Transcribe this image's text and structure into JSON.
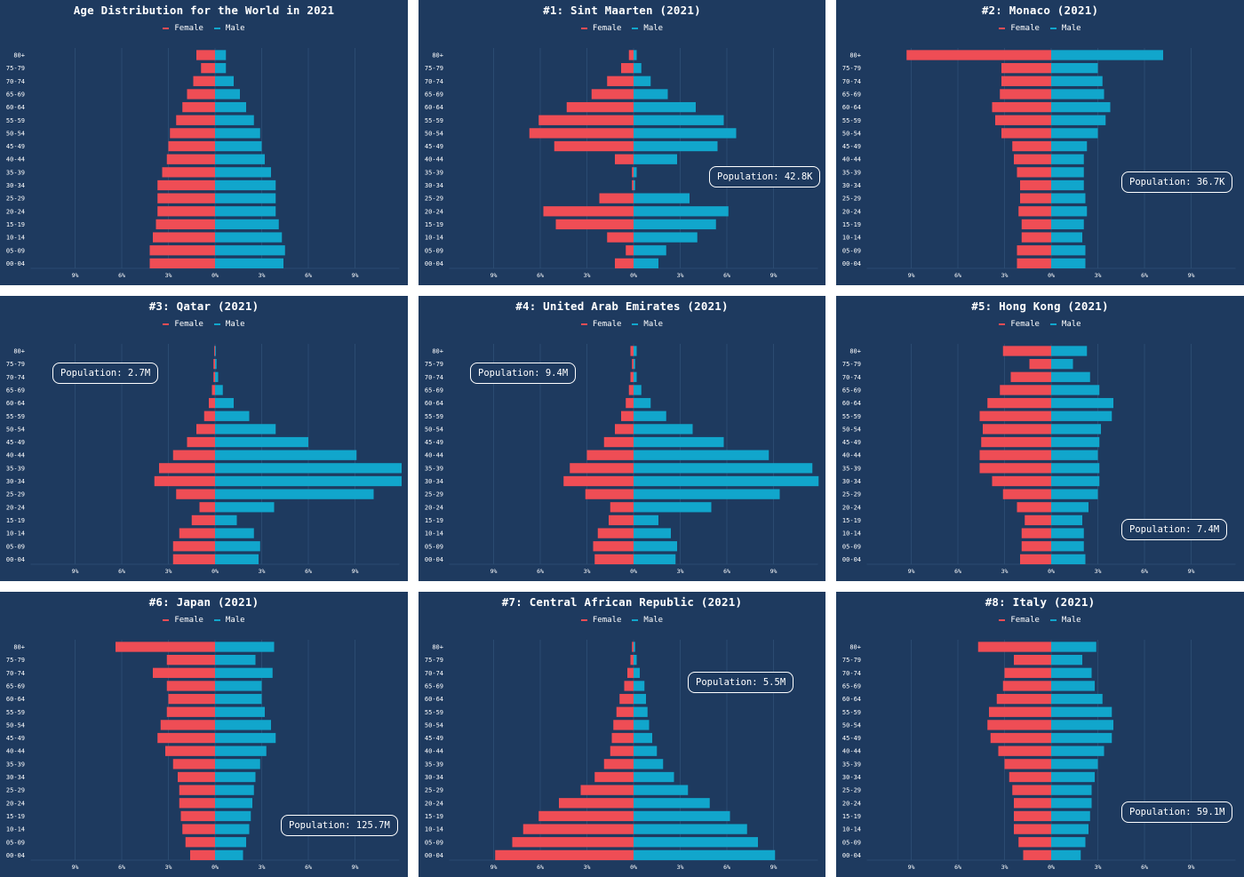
{
  "colors": {
    "background": "#1e3a5f",
    "female": "#ef4d55",
    "male": "#11a6cc",
    "grid": "#2f5076",
    "text": "#ffffff"
  },
  "legend": {
    "female": "Female",
    "male": "Male"
  },
  "chart_data": [
    {
      "type": "bar",
      "orientation": "horizontal-pyramid",
      "title": "Age Distribution for the World in 2021",
      "population": "",
      "categories": [
        "00-04",
        "05-09",
        "10-14",
        "15-19",
        "20-24",
        "25-29",
        "30-34",
        "35-39",
        "40-44",
        "45-49",
        "50-54",
        "55-59",
        "60-64",
        "65-69",
        "70-74",
        "75-79",
        "80+"
      ],
      "xticks": [
        "9%",
        "6%",
        "3%",
        "0%",
        "3%",
        "6%",
        "9%"
      ],
      "series": [
        {
          "name": "Female",
          "values": [
            4.2,
            4.2,
            4.0,
            3.8,
            3.7,
            3.7,
            3.7,
            3.4,
            3.1,
            3.0,
            2.9,
            2.5,
            2.1,
            1.8,
            1.4,
            0.9,
            1.2
          ]
        },
        {
          "name": "Male",
          "values": [
            4.4,
            4.5,
            4.3,
            4.1,
            3.9,
            3.9,
            3.9,
            3.6,
            3.2,
            3.0,
            2.9,
            2.5,
            2.0,
            1.6,
            1.2,
            0.7,
            0.7
          ]
        }
      ]
    },
    {
      "type": "bar",
      "orientation": "horizontal-pyramid",
      "title": "#1: Sint Maarten (2021)",
      "population": "Population: 42.8K",
      "categories": [
        "00-04",
        "05-09",
        "10-14",
        "15-19",
        "20-24",
        "25-29",
        "30-34",
        "35-39",
        "40-44",
        "45-49",
        "50-54",
        "55-59",
        "60-64",
        "65-69",
        "70-74",
        "75-79",
        "80+"
      ],
      "xticks": [
        "9%",
        "6%",
        "3%",
        "0%",
        "3%",
        "6%",
        "9%"
      ],
      "series": [
        {
          "name": "Female",
          "values": [
            1.2,
            0.5,
            1.7,
            5.0,
            5.8,
            2.2,
            0.1,
            0.1,
            1.2,
            5.1,
            6.7,
            6.1,
            4.3,
            2.7,
            1.7,
            0.8,
            0.3
          ]
        },
        {
          "name": "Male",
          "values": [
            1.6,
            2.1,
            4.1,
            5.3,
            6.1,
            3.6,
            0.1,
            0.2,
            2.8,
            5.4,
            6.6,
            5.8,
            4.0,
            2.2,
            1.1,
            0.5,
            0.2
          ]
        }
      ]
    },
    {
      "type": "bar",
      "orientation": "horizontal-pyramid",
      "title": "#2: Monaco (2021)",
      "population": "Population: 36.7K",
      "categories": [
        "00-04",
        "05-09",
        "10-14",
        "15-19",
        "20-24",
        "25-29",
        "30-34",
        "35-39",
        "40-44",
        "45-49",
        "50-54",
        "55-59",
        "60-64",
        "65-69",
        "70-74",
        "75-79",
        "80+"
      ],
      "xticks": [
        "9%",
        "6%",
        "3%",
        "0%",
        "3%",
        "6%",
        "9%"
      ],
      "series": [
        {
          "name": "Female",
          "values": [
            2.2,
            2.2,
            1.9,
            1.9,
            2.1,
            2.0,
            2.0,
            2.2,
            2.4,
            2.5,
            3.2,
            3.6,
            3.8,
            3.3,
            3.2,
            3.2,
            9.3
          ]
        },
        {
          "name": "Male",
          "values": [
            2.2,
            2.2,
            2.0,
            2.1,
            2.3,
            2.2,
            2.1,
            2.1,
            2.1,
            2.3,
            3.0,
            3.5,
            3.8,
            3.4,
            3.3,
            3.0,
            7.2
          ]
        }
      ]
    },
    {
      "type": "bar",
      "orientation": "horizontal-pyramid",
      "title": "#3: Qatar (2021)",
      "population": "Population: 2.7M",
      "categories": [
        "00-04",
        "05-09",
        "10-14",
        "15-19",
        "20-24",
        "25-29",
        "30-34",
        "35-39",
        "40-44",
        "45-49",
        "50-54",
        "55-59",
        "60-64",
        "65-69",
        "70-74",
        "75-79",
        "80+"
      ],
      "xticks": [
        "9%",
        "6%",
        "3%",
        "0%",
        "3%",
        "6%",
        "9%"
      ],
      "series": [
        {
          "name": "Female",
          "values": [
            2.7,
            2.7,
            2.3,
            1.5,
            1.0,
            2.5,
            3.9,
            3.6,
            2.7,
            1.8,
            1.2,
            0.7,
            0.4,
            0.2,
            0.1,
            0.1,
            0.05
          ]
        },
        {
          "name": "Male",
          "values": [
            2.8,
            2.9,
            2.5,
            1.4,
            3.8,
            10.2,
            12.0,
            12.0,
            9.1,
            6.0,
            3.9,
            2.2,
            1.2,
            0.5,
            0.2,
            0.1,
            0.05
          ]
        }
      ]
    },
    {
      "type": "bar",
      "orientation": "horizontal-pyramid",
      "title": "#4: United Arab Emirates (2021)",
      "population": "Population: 9.4M",
      "categories": [
        "00-04",
        "05-09",
        "10-14",
        "15-19",
        "20-24",
        "25-29",
        "30-34",
        "35-39",
        "40-44",
        "45-49",
        "50-54",
        "55-59",
        "60-64",
        "65-69",
        "70-74",
        "75-79",
        "80+"
      ],
      "xticks": [
        "9%",
        "6%",
        "3%",
        "0%",
        "3%",
        "6%",
        "9%"
      ],
      "series": [
        {
          "name": "Female",
          "values": [
            2.5,
            2.6,
            2.3,
            1.6,
            1.5,
            3.1,
            4.5,
            4.1,
            3.0,
            1.9,
            1.2,
            0.8,
            0.5,
            0.3,
            0.2,
            0.1,
            0.2
          ]
        },
        {
          "name": "Male",
          "values": [
            2.7,
            2.8,
            2.4,
            1.6,
            5.0,
            9.4,
            11.9,
            11.5,
            8.7,
            5.8,
            3.8,
            2.1,
            1.1,
            0.5,
            0.2,
            0.1,
            0.2
          ]
        }
      ]
    },
    {
      "type": "bar",
      "orientation": "horizontal-pyramid",
      "title": "#5: Hong Kong (2021)",
      "population": "Population: 7.4M",
      "categories": [
        "00-04",
        "05-09",
        "10-14",
        "15-19",
        "20-24",
        "25-29",
        "30-34",
        "35-39",
        "40-44",
        "45-49",
        "50-54",
        "55-59",
        "60-64",
        "65-69",
        "70-74",
        "75-79",
        "80+"
      ],
      "xticks": [
        "9%",
        "6%",
        "3%",
        "0%",
        "3%",
        "6%",
        "9%"
      ],
      "series": [
        {
          "name": "Female",
          "values": [
            2.0,
            1.9,
            1.9,
            1.7,
            2.2,
            3.1,
            3.8,
            4.6,
            4.6,
            4.5,
            4.4,
            4.6,
            4.1,
            3.3,
            2.6,
            1.4,
            3.1
          ]
        },
        {
          "name": "Male",
          "values": [
            2.2,
            2.1,
            2.1,
            2.0,
            2.4,
            3.0,
            3.1,
            3.1,
            3.0,
            3.1,
            3.2,
            3.9,
            4.0,
            3.1,
            2.5,
            1.4,
            2.3
          ]
        }
      ]
    },
    {
      "type": "bar",
      "orientation": "horizontal-pyramid",
      "title": "#6: Japan (2021)",
      "population": "Population: 125.7M",
      "categories": [
        "00-04",
        "05-09",
        "10-14",
        "15-19",
        "20-24",
        "25-29",
        "30-34",
        "35-39",
        "40-44",
        "45-49",
        "50-54",
        "55-59",
        "60-64",
        "65-69",
        "70-74",
        "75-79",
        "80+"
      ],
      "xticks": [
        "9%",
        "6%",
        "3%",
        "0%",
        "3%",
        "6%",
        "9%"
      ],
      "series": [
        {
          "name": "Female",
          "values": [
            1.6,
            1.9,
            2.1,
            2.2,
            2.3,
            2.3,
            2.4,
            2.7,
            3.2,
            3.7,
            3.5,
            3.1,
            3.0,
            3.1,
            4.0,
            3.1,
            6.4
          ]
        },
        {
          "name": "Male",
          "values": [
            1.8,
            2.0,
            2.2,
            2.3,
            2.4,
            2.5,
            2.6,
            2.9,
            3.3,
            3.9,
            3.6,
            3.2,
            3.0,
            3.0,
            3.7,
            2.6,
            3.8
          ]
        }
      ]
    },
    {
      "type": "bar",
      "orientation": "horizontal-pyramid",
      "title": "#7: Central African Republic (2021)",
      "population": "Population: 5.5M",
      "categories": [
        "00-04",
        "05-09",
        "10-14",
        "15-19",
        "20-24",
        "25-29",
        "30-34",
        "35-39",
        "40-44",
        "45-49",
        "50-54",
        "55-59",
        "60-64",
        "65-69",
        "70-74",
        "75-79",
        "80+"
      ],
      "xticks": [
        "9%",
        "6%",
        "3%",
        "0%",
        "3%",
        "6%",
        "9%"
      ],
      "series": [
        {
          "name": "Female",
          "values": [
            8.9,
            7.8,
            7.1,
            6.1,
            4.8,
            3.4,
            2.5,
            1.9,
            1.5,
            1.4,
            1.3,
            1.1,
            0.9,
            0.6,
            0.4,
            0.2,
            0.1
          ]
        },
        {
          "name": "Male",
          "values": [
            9.1,
            8.0,
            7.3,
            6.2,
            4.9,
            3.5,
            2.6,
            1.9,
            1.5,
            1.2,
            1.0,
            0.9,
            0.8,
            0.7,
            0.4,
            0.2,
            0.1
          ]
        }
      ]
    },
    {
      "type": "bar",
      "orientation": "horizontal-pyramid",
      "title": "#8: Italy (2021)",
      "population": "Population: 59.1M",
      "categories": [
        "00-04",
        "05-09",
        "10-14",
        "15-19",
        "20-24",
        "25-29",
        "30-34",
        "35-39",
        "40-44",
        "45-49",
        "50-54",
        "55-59",
        "60-64",
        "65-69",
        "70-74",
        "75-79",
        "80+"
      ],
      "xticks": [
        "9%",
        "6%",
        "3%",
        "0%",
        "3%",
        "6%",
        "9%"
      ],
      "series": [
        {
          "name": "Female",
          "values": [
            1.8,
            2.1,
            2.4,
            2.4,
            2.4,
            2.5,
            2.7,
            3.0,
            3.4,
            3.9,
            4.1,
            4.0,
            3.5,
            3.1,
            3.0,
            2.4,
            4.7
          ]
        },
        {
          "name": "Male",
          "values": [
            1.9,
            2.2,
            2.4,
            2.5,
            2.6,
            2.6,
            2.8,
            3.0,
            3.4,
            3.9,
            4.0,
            3.9,
            3.3,
            2.8,
            2.6,
            2.0,
            2.9
          ]
        }
      ]
    }
  ]
}
